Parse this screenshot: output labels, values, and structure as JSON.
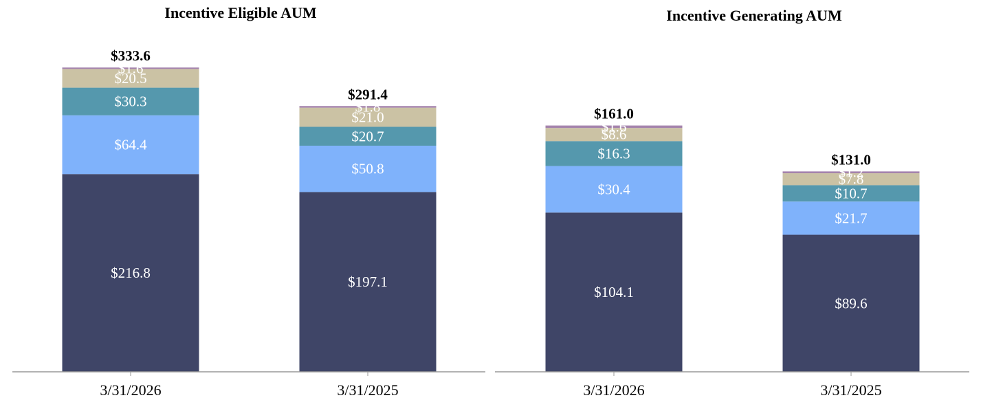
{
  "chart_data": [
    {
      "type": "bar",
      "stacked": true,
      "title": "Incentive Eligible AUM",
      "categories": [
        "3/31/2026",
        "3/31/2025"
      ],
      "totals": [
        "$333.6",
        "$291.4"
      ],
      "series": [
        {
          "values": [
            216.8,
            197.1
          ],
          "labels": [
            "$216.8",
            "$197.1"
          ],
          "color": "#3f4567"
        },
        {
          "values": [
            64.4,
            50.8
          ],
          "labels": [
            "$64.4",
            "$50.8"
          ],
          "color": "#7fb2fb"
        },
        {
          "values": [
            30.3,
            20.7
          ],
          "labels": [
            "$30.3",
            "$20.7"
          ],
          "color": "#5598ad"
        },
        {
          "values": [
            20.5,
            21.0
          ],
          "labels": [
            "$20.5",
            "$21.0"
          ],
          "color": "#cbc2a4"
        },
        {
          "values": [
            1.6,
            1.8
          ],
          "labels": [
            "$1.6",
            "$1.8"
          ],
          "color": "#a584ad"
        }
      ],
      "xlabel": "",
      "ylabel": "",
      "grid": false,
      "legend": "none"
    },
    {
      "type": "bar",
      "stacked": true,
      "title": "Incentive Generating AUM",
      "categories": [
        "3/31/2026",
        "3/31/2025"
      ],
      "totals": [
        "$161.0",
        "$131.0"
      ],
      "series": [
        {
          "values": [
            104.1,
            89.6
          ],
          "labels": [
            "$104.1",
            "$89.6"
          ],
          "color": "#3f4567"
        },
        {
          "values": [
            30.4,
            21.7
          ],
          "labels": [
            "$30.4",
            "$21.7"
          ],
          "color": "#7fb2fb"
        },
        {
          "values": [
            16.3,
            10.7
          ],
          "labels": [
            "$16.3",
            "$10.7"
          ],
          "color": "#5598ad"
        },
        {
          "values": [
            8.6,
            7.8
          ],
          "labels": [
            "$8.6",
            "$7.8"
          ],
          "color": "#cbc2a4"
        },
        {
          "values": [
            1.6,
            1.2
          ],
          "labels": [
            "$1.6",
            "$1.2"
          ],
          "color": "#a584ad"
        }
      ],
      "xlabel": "",
      "ylabel": "",
      "grid": false,
      "legend": "none"
    }
  ],
  "colors": {
    "axis": "#999999",
    "segment_text": "#ffffff",
    "total_text": "#000000"
  }
}
